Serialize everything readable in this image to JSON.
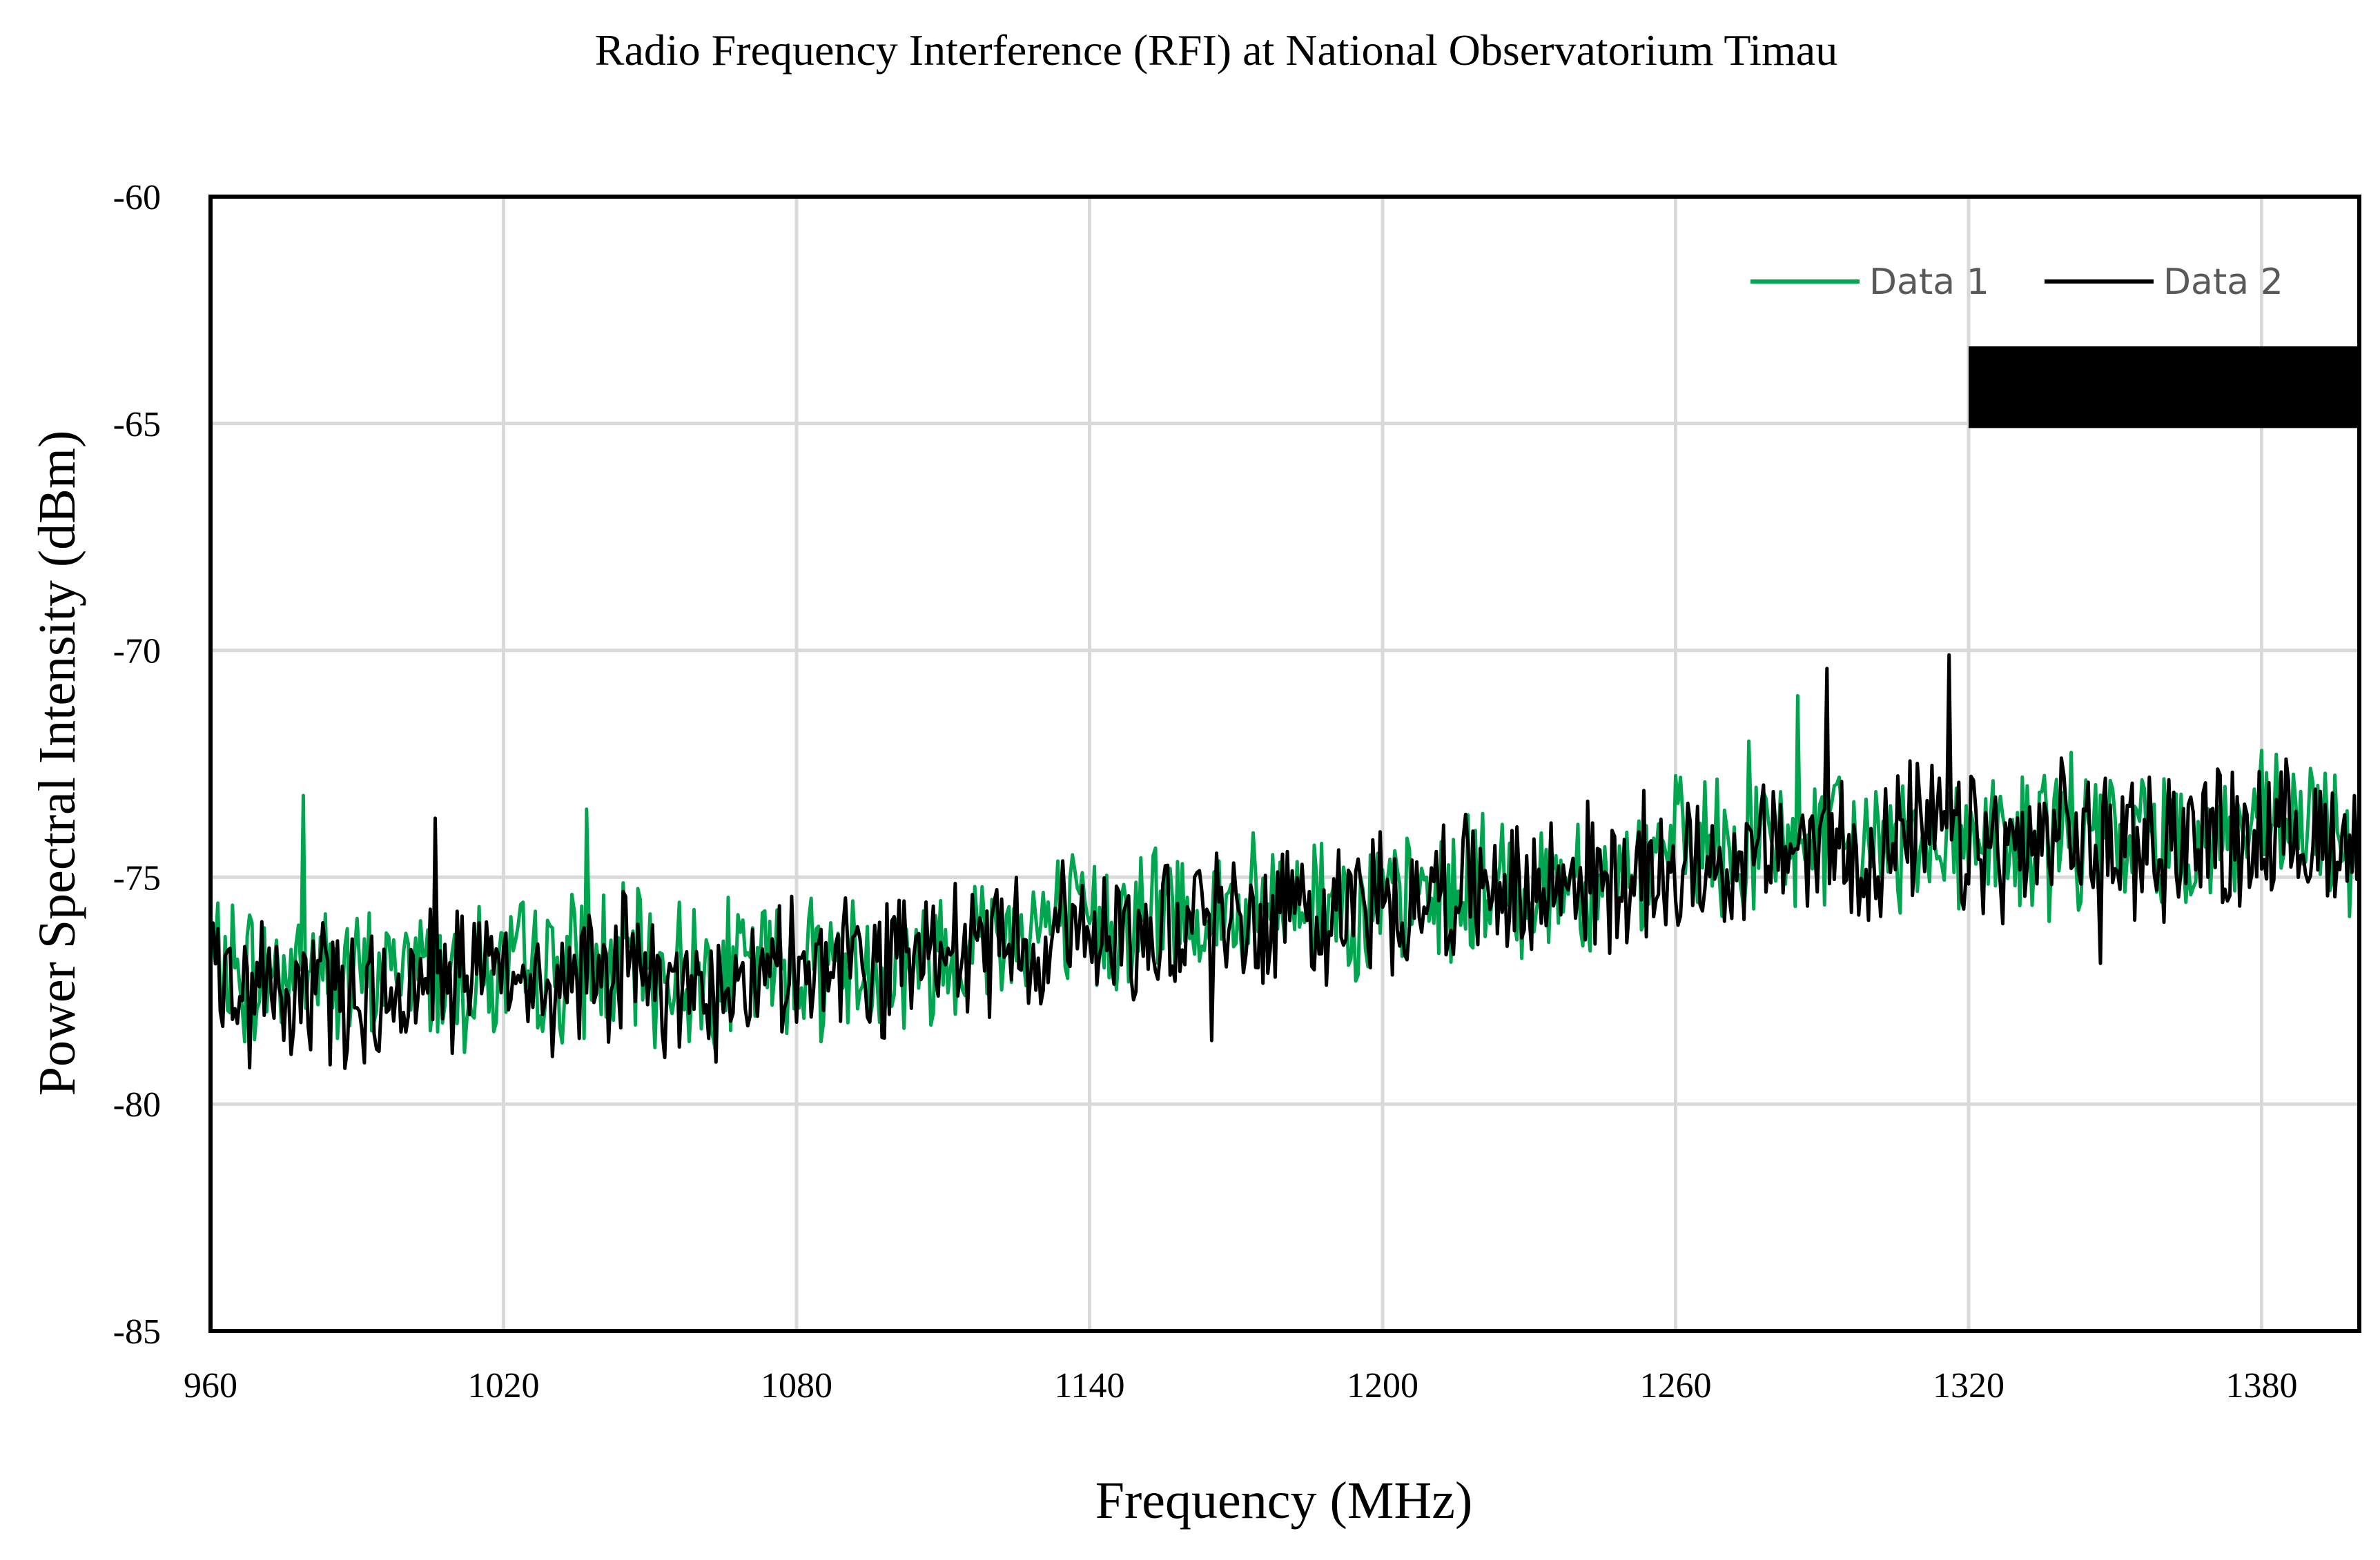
{
  "chart_data": {
    "type": "line",
    "title": "Radio Frequency Interference (RFI) at National Observatorium  Timau",
    "xlabel": "Frequency (MHz)",
    "ylabel": "Power Spectral Intensity (dBm)",
    "xlim": [
      960,
      1400
    ],
    "ylim": [
      -85,
      -60
    ],
    "xticks": [
      960,
      1020,
      1080,
      1140,
      1200,
      1260,
      1320,
      1380
    ],
    "yticks": [
      -60,
      -65,
      -70,
      -75,
      -80,
      -85
    ],
    "grid": true,
    "legend_position": "top-right",
    "series": [
      {
        "name": "Data 1",
        "color": "#00a54f",
        "x": [
          960,
          970,
          980,
          990,
          1000,
          1010,
          1020,
          1030,
          1040,
          1050,
          1060,
          1070,
          1080,
          1090,
          1100,
          1110,
          1120,
          1130,
          1140,
          1150,
          1160,
          1170,
          1180,
          1190,
          1200,
          1210,
          1220,
          1230,
          1240,
          1250,
          1260,
          1270,
          1280,
          1290,
          1300,
          1310,
          1320,
          1330,
          1340,
          1350,
          1360,
          1370,
          1380,
          1390,
          1400
        ],
        "values": [
          -77.0,
          -77.2,
          -76.8,
          -77.4,
          -76.9,
          -77.1,
          -77.2,
          -77.0,
          -76.9,
          -77.0,
          -77.1,
          -77.0,
          -76.8,
          -76.9,
          -77.0,
          -76.6,
          -76.2,
          -76.0,
          -76.1,
          -75.8,
          -75.7,
          -75.9,
          -75.6,
          -75.4,
          -75.8,
          -75.4,
          -75.2,
          -75.3,
          -74.9,
          -75.0,
          -74.6,
          -74.5,
          -74.3,
          -74.2,
          -74.4,
          -74.0,
          -74.1,
          -74.3,
          -74.0,
          -74.2,
          -74.0,
          -74.1,
          -73.9,
          -74.0,
          -74.2
        ],
        "peaks": [
          {
            "x": 979,
            "y": -73.2
          },
          {
            "x": 1037,
            "y": -73.5
          },
          {
            "x": 1261,
            "y": -72.8
          },
          {
            "x": 1275,
            "y": -72.0
          },
          {
            "x": 1285,
            "y": -71.0
          }
        ]
      },
      {
        "name": "Data 2",
        "color": "#000000",
        "x": [
          960,
          970,
          980,
          990,
          1000,
          1010,
          1020,
          1030,
          1040,
          1050,
          1060,
          1070,
          1080,
          1090,
          1100,
          1110,
          1120,
          1130,
          1140,
          1150,
          1160,
          1170,
          1180,
          1190,
          1200,
          1210,
          1220,
          1230,
          1240,
          1250,
          1260,
          1270,
          1280,
          1290,
          1300,
          1310,
          1320,
          1330,
          1340,
          1350,
          1360,
          1370,
          1380,
          1390,
          1400
        ],
        "values": [
          -77.2,
          -77.5,
          -77.3,
          -77.6,
          -77.4,
          -77.2,
          -77.3,
          -77.4,
          -77.0,
          -77.2,
          -77.3,
          -77.4,
          -77.1,
          -77.0,
          -77.1,
          -76.8,
          -76.4,
          -76.3,
          -76.2,
          -76.0,
          -75.8,
          -76.0,
          -75.7,
          -75.6,
          -75.6,
          -75.3,
          -75.2,
          -75.4,
          -75.0,
          -75.1,
          -74.7,
          -74.6,
          -74.5,
          -74.3,
          -74.5,
          -74.1,
          -74.3,
          -74.5,
          -74.1,
          -74.3,
          -74.2,
          -74.1,
          -74.0,
          -74.2,
          -74.1
        ],
        "peaks": [
          {
            "x": 968,
            "y": -79.2
          },
          {
            "x": 1006,
            "y": -73.7
          },
          {
            "x": 1165,
            "y": -78.6
          },
          {
            "x": 1291,
            "y": -70.4
          },
          {
            "x": 1316,
            "y": -70.1
          },
          {
            "x": 1347,
            "y": -76.9
          }
        ]
      }
    ],
    "redaction_box": {
      "x_from": 1320,
      "x_to": 1400,
      "y_from": -63.3,
      "y_to": -65.1,
      "color": "#000000"
    }
  }
}
